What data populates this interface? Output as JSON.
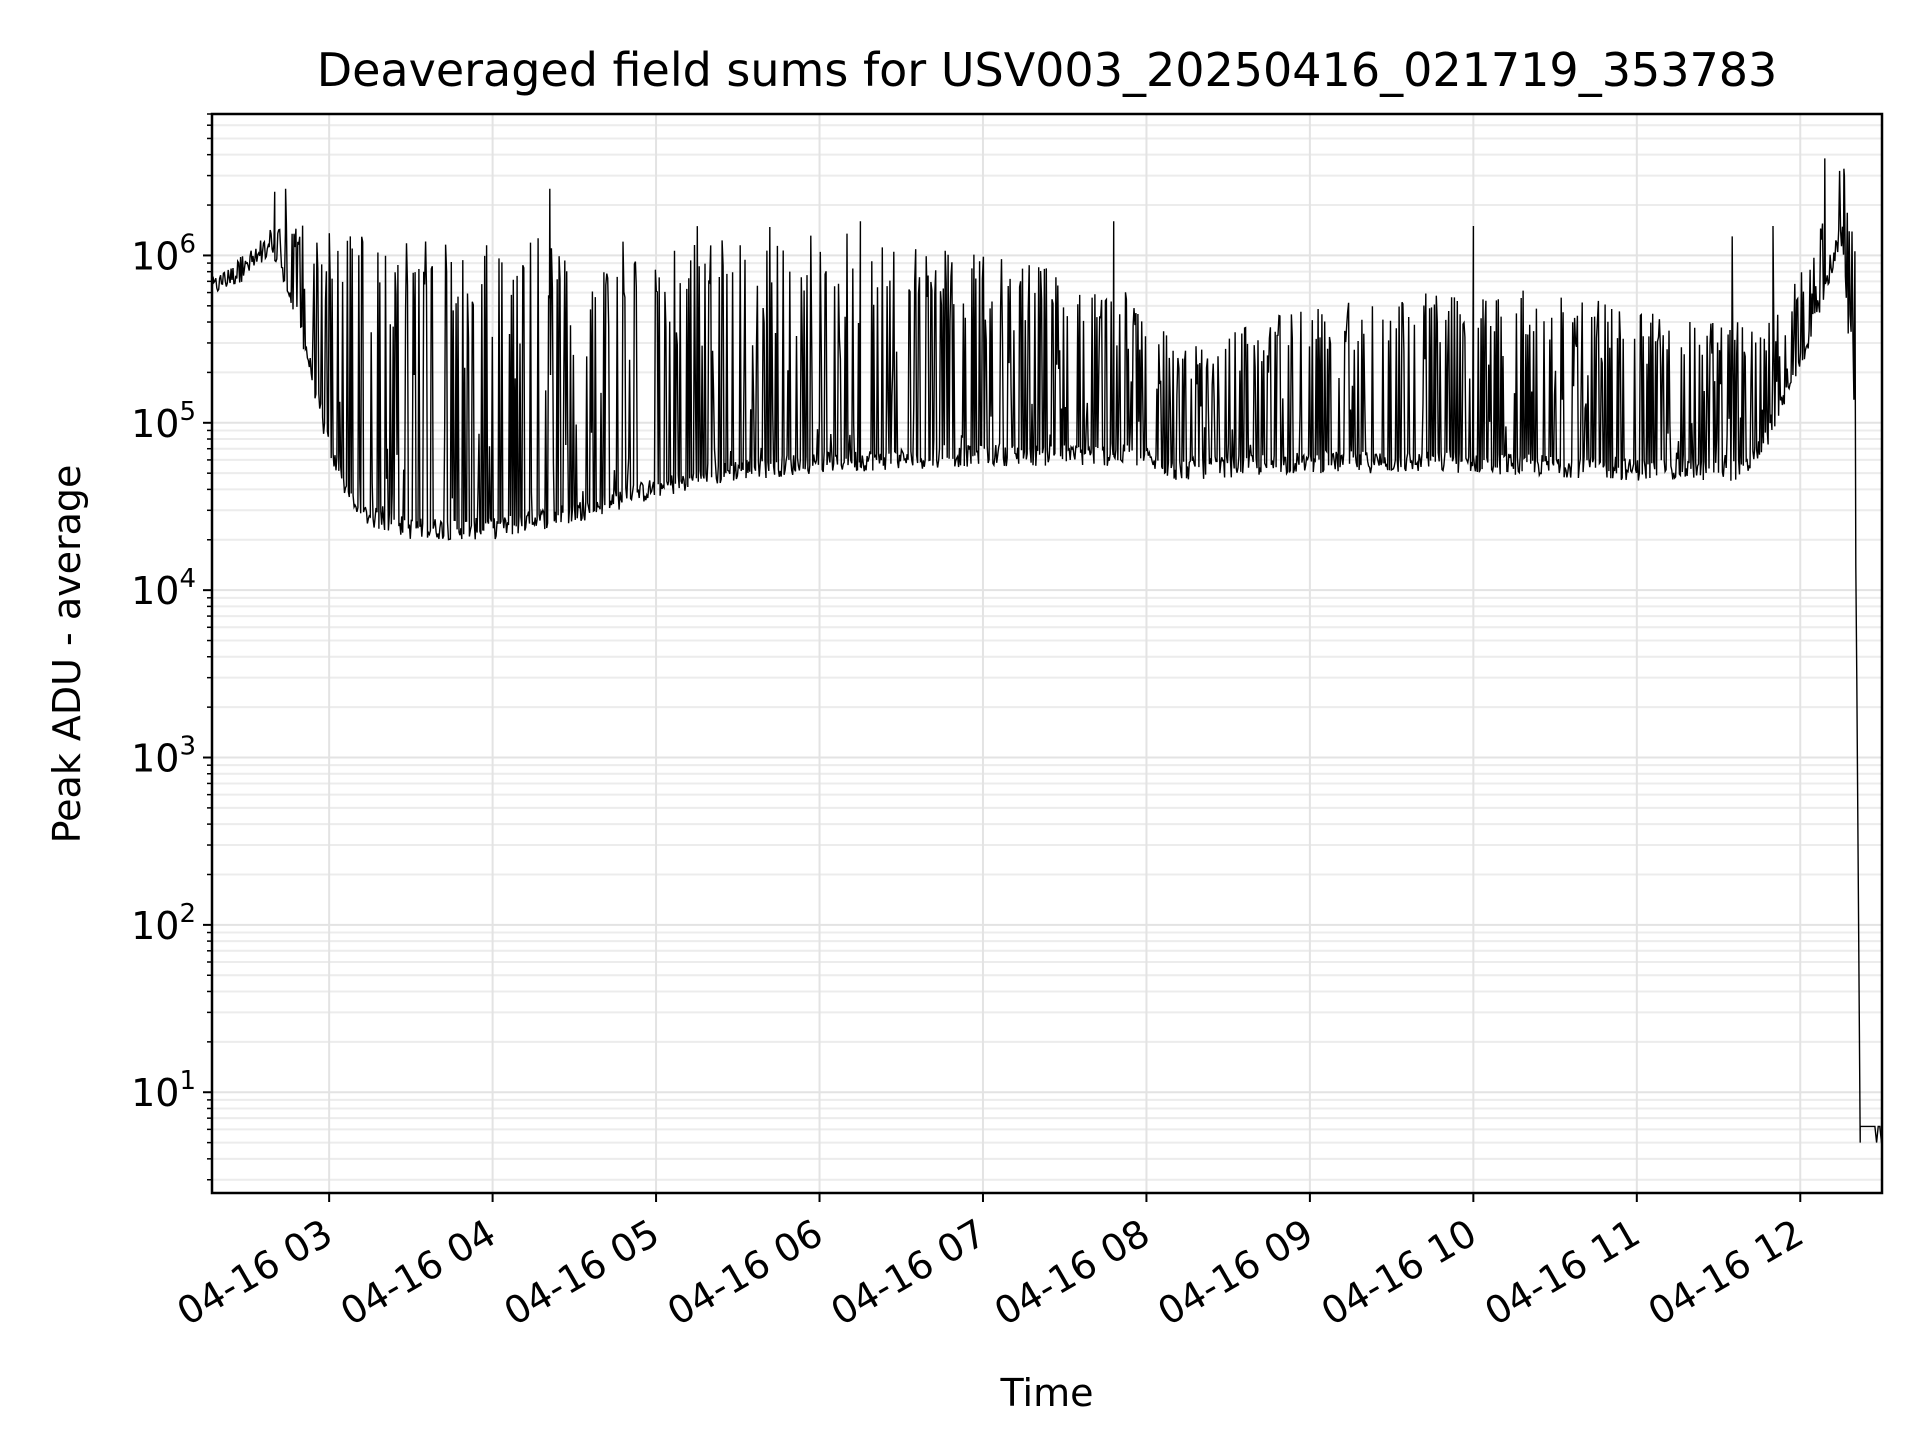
{
  "chart_data": {
    "type": "line",
    "title": "Deaveraged field sums for USV003_20250416_021719_353783",
    "xlabel": "Time",
    "ylabel": "Peak ADU - average",
    "yscale": "log",
    "ylim": [
      2.5,
      7000000
    ],
    "xlim": [
      "04-16 02:17",
      "04-16 12:30"
    ],
    "grid": true,
    "legend": "none",
    "line_color": "#000000",
    "x_ticks": [
      "04-16 03",
      "04-16 04",
      "04-16 05",
      "04-16 06",
      "04-16 07",
      "04-16 08",
      "04-16 09",
      "04-16 10",
      "04-16 11",
      "04-16 12"
    ],
    "y_ticks": [
      {
        "value": 10,
        "base": "10",
        "exp": "1"
      },
      {
        "value": 100,
        "base": "10",
        "exp": "2"
      },
      {
        "value": 1000,
        "base": "10",
        "exp": "3"
      },
      {
        "value": 10000,
        "base": "10",
        "exp": "4"
      },
      {
        "value": 100000,
        "base": "10",
        "exp": "5"
      },
      {
        "value": 1000000,
        "base": "10",
        "exp": "6"
      }
    ],
    "envelope": {
      "description_points": "Approximate baseline (lower envelope) and peak (upper envelope) of the noisy series, in data units, sampled at times",
      "times": [
        "04-16 02:17",
        "04-16 02:40",
        "04-16 02:50",
        "04-16 03:00",
        "04-16 03:10",
        "04-16 03:30",
        "04-16 04:00",
        "04-16 04:30",
        "04-16 05:00",
        "04-16 05:30",
        "04-16 06:00",
        "04-16 07:00",
        "04-16 07:55",
        "04-16 08:10",
        "04-16 09:00",
        "04-16 10:00",
        "04-16 11:00",
        "04-16 11:40",
        "04-16 11:50",
        "04-16 12:00",
        "04-16 12:10",
        "04-16 12:15",
        "04-16 12:20",
        "04-16 12:22",
        "04-16 12:30"
      ],
      "baseline": [
        550000,
        900000,
        300000,
        60000,
        25000,
        20000,
        20000,
        25000,
        35000,
        45000,
        50000,
        55000,
        55000,
        45000,
        50000,
        50000,
        45000,
        45000,
        80000,
        200000,
        600000,
        1200000,
        100000,
        5,
        5
      ],
      "peaks": [
        700000,
        1500000,
        1600000,
        1500000,
        1300000,
        1300000,
        1300000,
        1300000,
        1500000,
        1500000,
        1600000,
        1000000,
        700000,
        300000,
        500000,
        700000,
        500000,
        400000,
        400000,
        800000,
        2000000,
        3500000,
        2000000,
        5,
        5
      ]
    },
    "spikes": [
      {
        "x": "04-16 02:40",
        "y": 2400000
      },
      {
        "x": "04-16 02:44",
        "y": 2500000
      },
      {
        "x": "04-16 04:21",
        "y": 2500000
      },
      {
        "x": "04-16 06:15",
        "y": 1600000
      },
      {
        "x": "04-16 07:48",
        "y": 1600000
      },
      {
        "x": "04-16 10:00",
        "y": 1500000
      },
      {
        "x": "04-16 11:35",
        "y": 1300000
      },
      {
        "x": "04-16 11:50",
        "y": 1500000
      },
      {
        "x": "04-16 12:09",
        "y": 3800000
      },
      {
        "x": "04-16 12:16",
        "y": 3300000
      }
    ]
  }
}
